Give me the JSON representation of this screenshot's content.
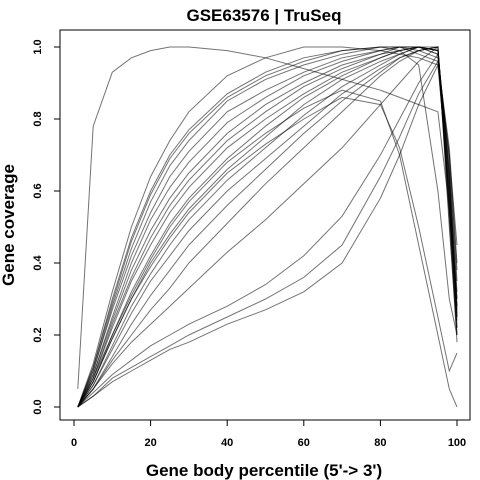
{
  "chart_data": {
    "type": "line",
    "title": "GSE63576 | TruSeq",
    "xlabel": "Gene body percentile (5'-> 3')",
    "ylabel": "Gene coverage",
    "xlim": [
      0,
      100
    ],
    "ylim": [
      0,
      1.05
    ],
    "xticks": [
      "0",
      "20",
      "40",
      "60",
      "80",
      "100"
    ],
    "yticks": [
      "0.0",
      "0.2",
      "0.4",
      "0.6",
      "0.8",
      "1.0"
    ],
    "grid": false,
    "legend": "none",
    "line_color": "#000000",
    "x": [
      1,
      5,
      10,
      15,
      20,
      25,
      30,
      40,
      50,
      60,
      70,
      80,
      85,
      90,
      95,
      98,
      100
    ],
    "series": [
      {
        "values": [
          0.05,
          0.78,
          0.93,
          0.97,
          0.99,
          1.0,
          1.0,
          0.99,
          0.97,
          0.94,
          0.91,
          0.88,
          0.86,
          0.84,
          0.82,
          0.55,
          0.3
        ]
      },
      {
        "values": [
          0.0,
          0.12,
          0.32,
          0.5,
          0.64,
          0.74,
          0.82,
          0.92,
          0.97,
          1.0,
          1.0,
          0.99,
          0.98,
          0.97,
          0.95,
          0.7,
          0.45
        ]
      },
      {
        "values": [
          0.0,
          0.11,
          0.3,
          0.47,
          0.6,
          0.7,
          0.77,
          0.87,
          0.93,
          0.97,
          0.99,
          1.0,
          1.0,
          0.98,
          0.96,
          0.72,
          0.4
        ]
      },
      {
        "values": [
          0.0,
          0.1,
          0.28,
          0.44,
          0.57,
          0.67,
          0.74,
          0.85,
          0.91,
          0.95,
          0.98,
          1.0,
          1.0,
          0.99,
          0.97,
          0.7,
          0.38
        ]
      },
      {
        "values": [
          0.0,
          0.1,
          0.27,
          0.42,
          0.54,
          0.64,
          0.71,
          0.82,
          0.88,
          0.93,
          0.97,
          0.99,
          1.0,
          1.0,
          0.98,
          0.68,
          0.35
        ]
      },
      {
        "values": [
          0.0,
          0.09,
          0.25,
          0.4,
          0.52,
          0.61,
          0.68,
          0.79,
          0.86,
          0.92,
          0.96,
          0.99,
          1.0,
          1.0,
          0.98,
          0.66,
          0.32
        ]
      },
      {
        "values": [
          0.0,
          0.09,
          0.24,
          0.38,
          0.49,
          0.58,
          0.65,
          0.76,
          0.84,
          0.9,
          0.95,
          0.98,
          1.0,
          1.0,
          0.99,
          0.65,
          0.3
        ]
      },
      {
        "values": [
          0.0,
          0.08,
          0.23,
          0.36,
          0.47,
          0.56,
          0.63,
          0.74,
          0.82,
          0.89,
          0.94,
          0.98,
          0.99,
          1.0,
          0.99,
          0.64,
          0.28
        ]
      },
      {
        "values": [
          0.0,
          0.08,
          0.22,
          0.35,
          0.45,
          0.54,
          0.61,
          0.72,
          0.8,
          0.87,
          0.93,
          0.97,
          0.99,
          1.0,
          0.99,
          0.63,
          0.27
        ]
      },
      {
        "values": [
          0.0,
          0.07,
          0.2,
          0.32,
          0.42,
          0.51,
          0.58,
          0.69,
          0.78,
          0.86,
          0.92,
          0.97,
          0.99,
          1.0,
          0.99,
          0.62,
          0.26
        ]
      },
      {
        "values": [
          0.0,
          0.07,
          0.19,
          0.3,
          0.4,
          0.48,
          0.55,
          0.66,
          0.75,
          0.84,
          0.91,
          0.96,
          0.98,
          1.0,
          0.99,
          0.6,
          0.25
        ]
      },
      {
        "values": [
          0.0,
          0.06,
          0.17,
          0.28,
          0.37,
          0.45,
          0.52,
          0.63,
          0.72,
          0.81,
          0.89,
          0.95,
          0.98,
          1.0,
          1.0,
          0.58,
          0.24
        ]
      },
      {
        "values": [
          0.0,
          0.06,
          0.16,
          0.26,
          0.35,
          0.42,
          0.49,
          0.6,
          0.69,
          0.78,
          0.87,
          0.94,
          0.97,
          0.99,
          1.0,
          0.56,
          0.22
        ]
      },
      {
        "values": [
          0.0,
          0.05,
          0.14,
          0.23,
          0.31,
          0.38,
          0.45,
          0.56,
          0.66,
          0.76,
          0.85,
          0.93,
          0.97,
          0.99,
          1.0,
          0.55,
          0.2
        ]
      },
      {
        "values": [
          0.0,
          0.05,
          0.13,
          0.2,
          0.27,
          0.33,
          0.4,
          0.51,
          0.62,
          0.72,
          0.82,
          0.92,
          0.96,
          0.99,
          1.0,
          0.52,
          0.18
        ]
      },
      {
        "values": [
          0.0,
          0.05,
          0.12,
          0.18,
          0.23,
          0.28,
          0.33,
          0.43,
          0.52,
          0.62,
          0.72,
          0.84,
          0.9,
          0.96,
          1.0,
          0.5,
          0.2
        ]
      },
      {
        "values": [
          0.0,
          0.04,
          0.09,
          0.13,
          0.17,
          0.2,
          0.23,
          0.28,
          0.34,
          0.42,
          0.53,
          0.7,
          0.8,
          0.9,
          0.98,
          0.55,
          0.22
        ]
      },
      {
        "values": [
          0.0,
          0.03,
          0.08,
          0.11,
          0.14,
          0.17,
          0.2,
          0.25,
          0.3,
          0.36,
          0.45,
          0.64,
          0.75,
          0.87,
          0.96,
          0.58,
          0.25
        ]
      },
      {
        "values": [
          0.0,
          0.03,
          0.07,
          0.1,
          0.13,
          0.16,
          0.18,
          0.23,
          0.27,
          0.32,
          0.4,
          0.58,
          0.7,
          0.84,
          0.95,
          0.6,
          0.28
        ]
      },
      {
        "values": [
          0.0,
          0.08,
          0.2,
          0.31,
          0.41,
          0.5,
          0.57,
          0.68,
          0.76,
          0.83,
          0.88,
          0.85,
          0.7,
          0.45,
          0.2,
          0.05,
          0.0
        ]
      },
      {
        "values": [
          0.0,
          0.07,
          0.19,
          0.3,
          0.39,
          0.47,
          0.54,
          0.65,
          0.73,
          0.8,
          0.86,
          0.84,
          0.72,
          0.5,
          0.25,
          0.1,
          0.15
        ]
      },
      {
        "values": [
          0.0,
          0.11,
          0.29,
          0.46,
          0.59,
          0.69,
          0.76,
          0.86,
          0.92,
          0.96,
          0.99,
          1.0,
          0.99,
          0.95,
          0.6,
          0.3,
          0.2
        ]
      }
    ]
  }
}
